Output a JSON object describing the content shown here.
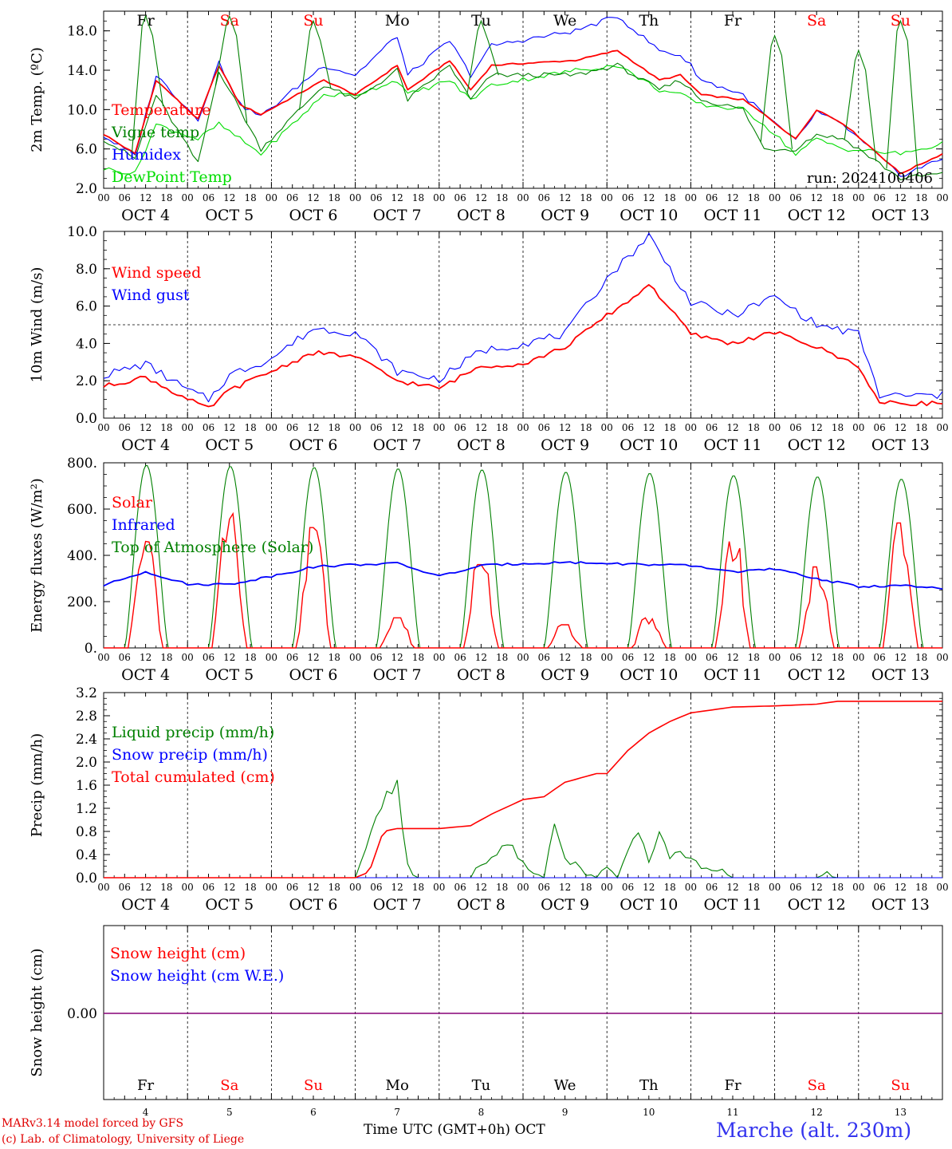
{
  "chart_data": [
    {
      "type": "line",
      "ylabel": "2m Temp. (ºC)",
      "ylim": [
        2.0,
        20.0
      ],
      "yticks": [
        "2.0",
        "6.0",
        "10.0",
        "14.0",
        "18.0"
      ],
      "annotation": "run: 2024100406",
      "x_hours": [
        0,
        9,
        15,
        27,
        33,
        39,
        45,
        63,
        72,
        84,
        87,
        99,
        105,
        111,
        135,
        147,
        159,
        165,
        168,
        171,
        183,
        189,
        198,
        204,
        212,
        228,
        240
      ],
      "series": [
        {
          "name": "Temperature",
          "color": "#ff0000",
          "values": [
            7.5,
            5.5,
            13.0,
            9.0,
            14.5,
            10.5,
            9.5,
            13.0,
            11.5,
            14.5,
            12.0,
            15.0,
            12.0,
            14.5,
            15.0,
            16.0,
            13.0,
            13.5,
            12.5,
            11.5,
            11.0,
            9.5,
            7.0,
            10.0,
            8.5,
            3.5,
            5.5
          ]
        },
        {
          "name": "Vigne temp",
          "color": "#008000",
          "values": [
            7.0,
            5.0,
            11.5,
            4.5,
            14.0,
            10.0,
            6.0,
            12.5,
            11.0,
            14.0,
            11.0,
            14.5,
            11.0,
            13.5,
            13.5,
            14.5,
            12.0,
            13.0,
            12.0,
            11.0,
            10.0,
            6.0,
            6.0,
            7.5,
            7.0,
            3.0,
            3.5
          ]
        },
        {
          "name": "Humidex",
          "color": "#0000ff",
          "values": [
            7.3,
            5.3,
            13.5,
            9.0,
            14.8,
            10.5,
            9.3,
            14.5,
            13.5,
            17.5,
            13.5,
            17.0,
            13.5,
            16.5,
            18.0,
            19.5,
            16.0,
            15.5,
            14.5,
            13.0,
            11.5,
            9.5,
            6.8,
            9.8,
            8.3,
            3.3,
            5.0
          ]
        },
        {
          "name": "DewPoint Temp",
          "color": "#00dd00",
          "values": [
            4.0,
            3.5,
            8.5,
            7.0,
            8.5,
            7.0,
            5.5,
            11.5,
            11.5,
            13.0,
            11.5,
            13.0,
            11.0,
            12.5,
            14.0,
            14.5,
            12.0,
            11.5,
            11.0,
            10.5,
            10.0,
            8.5,
            5.5,
            7.0,
            6.0,
            5.5,
            6.5
          ]
        }
      ],
      "spiky_series": [
        {
          "name": "Vigne temp",
          "color": "#008000",
          "peaks": [
            [
              12,
              19.5
            ],
            [
              36,
              19.5
            ],
            [
              60,
              19.0
            ],
            [
              108,
              19.0
            ],
            [
              192,
              17.5
            ],
            [
              216,
              16.0
            ],
            [
              228,
              19.0
            ]
          ]
        }
      ]
    },
    {
      "type": "line",
      "ylabel": "10m Wind (m/s)",
      "ylim": [
        0.0,
        10.0
      ],
      "yticks": [
        "0.0",
        "2.0",
        "4.0",
        "6.0",
        "8.0",
        "10.0"
      ],
      "reference_line": 5.0,
      "x_hours": [
        0,
        12,
        24,
        30,
        36,
        48,
        60,
        72,
        84,
        96,
        108,
        120,
        132,
        144,
        152,
        156,
        168,
        180,
        192,
        204,
        216,
        222,
        240
      ],
      "series": [
        {
          "name": "Wind speed",
          "color": "#ff0000",
          "values": [
            1.7,
            2.2,
            1.0,
            0.5,
            1.5,
            2.5,
            3.5,
            3.3,
            2.0,
            1.6,
            2.8,
            2.9,
            3.8,
            5.5,
            6.5,
            7.2,
            4.5,
            4.0,
            4.6,
            3.8,
            2.8,
            0.8,
            0.8
          ]
        },
        {
          "name": "Wind gust",
          "color": "#0000ff",
          "values": [
            2.3,
            2.9,
            1.5,
            1.0,
            2.3,
            3.2,
            4.8,
            4.6,
            2.5,
            2.1,
            3.6,
            4.0,
            4.5,
            7.5,
            9.0,
            9.8,
            6.2,
            5.5,
            6.5,
            5.0,
            4.5,
            1.2,
            1.2
          ]
        }
      ]
    },
    {
      "type": "line",
      "ylabel": "Energy fluxes (W/m²)",
      "ylim": [
        0,
        800
      ],
      "yticks": [
        "0.",
        "200.",
        "400.",
        "600.",
        "800."
      ],
      "x_hours": [
        0,
        12,
        24,
        36,
        48,
        60,
        72,
        84,
        96,
        108,
        120,
        132,
        144,
        156,
        168,
        180,
        192,
        204,
        216,
        228,
        240
      ],
      "series": [
        {
          "name": "Solar",
          "color": "#ff0000",
          "daily_peaks": [
            460,
            580,
            520,
            130,
            360,
            100,
            130,
            460,
            350,
            540
          ]
        },
        {
          "name": "Infrared",
          "color": "#0000ff",
          "values": [
            270,
            330,
            275,
            275,
            310,
            350,
            360,
            365,
            310,
            355,
            365,
            370,
            365,
            360,
            355,
            330,
            340,
            300,
            265,
            270,
            255
          ]
        },
        {
          "name": "Top of Atmosphere (Solar)",
          "color": "#008000",
          "daily_peaks": [
            790,
            785,
            780,
            775,
            770,
            760,
            755,
            745,
            740,
            730
          ]
        }
      ]
    },
    {
      "type": "line",
      "ylabel": "Precip (mm/h)",
      "ylim": [
        0.0,
        3.2
      ],
      "yticks": [
        "0.0",
        "0.4",
        "0.8",
        "1.2",
        "1.6",
        "2.0",
        "2.4",
        "2.8",
        "3.2"
      ],
      "series": [
        {
          "name": "Liquid precip (mm/h)",
          "color": "#008000",
          "x": [
            0,
            72,
            78,
            81,
            82,
            84,
            86,
            87,
            90,
            105,
            111,
            114,
            117,
            123,
            126,
            129,
            132,
            138,
            141,
            144,
            147,
            150,
            153,
            156,
            159,
            162,
            165,
            168,
            172,
            174,
            180,
            205,
            207,
            210,
            240
          ],
          "y": [
            0.0,
            0.0,
            1.0,
            1.5,
            1.3,
            1.7,
            0.6,
            0.2,
            0.0,
            0.0,
            0.4,
            0.5,
            0.5,
            0.1,
            0.0,
            1.0,
            0.3,
            0.1,
            0.0,
            0.25,
            0.0,
            0.4,
            0.8,
            0.3,
            0.8,
            0.4,
            0.5,
            0.3,
            0.1,
            0.2,
            0.0,
            0.0,
            0.15,
            0.0,
            0.0
          ]
        },
        {
          "name": "Snow precip (mm/h)",
          "color": "#0000ff",
          "x": [
            0,
            240
          ],
          "y": [
            0.0,
            0.0
          ]
        },
        {
          "name": "Total cumulated (cm)",
          "color": "#ff0000",
          "x": [
            0,
            72,
            76,
            80,
            84,
            96,
            105,
            111,
            120,
            126,
            132,
            138,
            141,
            144,
            150,
            156,
            162,
            168,
            180,
            192,
            204,
            210,
            240
          ],
          "y": [
            0.0,
            0.0,
            0.1,
            0.8,
            0.85,
            0.85,
            0.9,
            1.1,
            1.35,
            1.4,
            1.65,
            1.75,
            1.8,
            1.8,
            2.2,
            2.5,
            2.7,
            2.85,
            2.95,
            2.97,
            3.0,
            3.05,
            3.05
          ]
        }
      ]
    },
    {
      "type": "line",
      "ylabel": "Snow height (cm)",
      "yticks": [
        "0.00"
      ],
      "series": [
        {
          "name": "Snow height (cm)",
          "color": "#ff0000",
          "values": [
            0.0,
            0.0
          ]
        },
        {
          "name": "Snow height (cm W.E.)",
          "color": "#0000ff",
          "values": [
            0.0,
            0.0
          ]
        }
      ]
    }
  ],
  "axis": {
    "hour_ticks": [
      "00",
      "06",
      "12",
      "18"
    ],
    "end_tick": "00",
    "date_labels": [
      "OCT  4",
      "OCT  5",
      "OCT  6",
      "OCT  7",
      "OCT  8",
      "OCT  9",
      "OCT 10",
      "OCT 11",
      "OCT 12",
      "OCT 13"
    ],
    "day_numbers": [
      "4",
      "5",
      "6",
      "7",
      "8",
      "9",
      "10",
      "11",
      "12",
      "13"
    ],
    "weekdays": [
      "Fr",
      "Sa",
      "Su",
      "Mo",
      "Tu",
      "We",
      "Th",
      "Fr",
      "Sa",
      "Su"
    ],
    "weekend_color": "#ff0000",
    "weekday_color": "#000000"
  },
  "footer": {
    "credit_line1": "MARv3.14 model forced by GFS",
    "credit_line2": "(c) Lab. of Climatology, University of Liege",
    "x_caption": "Time UTC (GMT+0h) OCT",
    "station": "Marche (alt. 230m)"
  }
}
